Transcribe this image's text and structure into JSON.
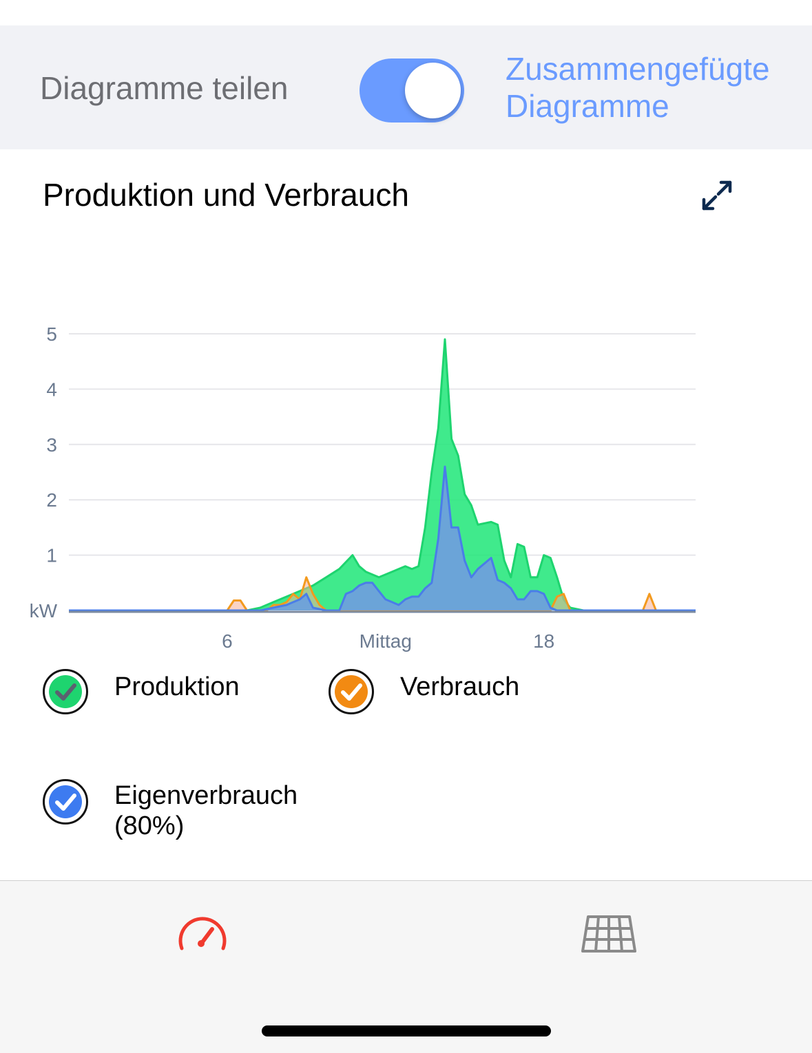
{
  "toggle": {
    "left_label": "Diagramme teilen",
    "right_label": "Zusammengefügte Diagramme",
    "on": true,
    "accent_color": "#6a9bff"
  },
  "card": {
    "title": "Produktion und Verbrauch",
    "expand_icon": "expand-arrows-icon"
  },
  "chart_data": {
    "type": "area",
    "unit_label": "kW",
    "x_tick_labels": [
      "6",
      "Mittag",
      "18"
    ],
    "x_ticks": [
      6,
      12,
      18
    ],
    "xlim": [
      0,
      23.75
    ],
    "ylim": [
      0,
      5
    ],
    "y_ticks": [
      1,
      2,
      3,
      4,
      5
    ],
    "grid": true,
    "series": [
      {
        "name": "Produktion",
        "color": "#1ed46f",
        "points": [
          [
            0,
            0
          ],
          [
            6.75,
            0
          ],
          [
            7.25,
            0.05
          ],
          [
            7.75,
            0.15
          ],
          [
            8.5,
            0.3
          ],
          [
            9.25,
            0.45
          ],
          [
            9.75,
            0.6
          ],
          [
            10.25,
            0.75
          ],
          [
            10.75,
            1.0
          ],
          [
            11,
            0.8
          ],
          [
            11.25,
            0.7
          ],
          [
            11.5,
            0.65
          ],
          [
            11.75,
            0.6
          ],
          [
            12,
            0.65
          ],
          [
            12.25,
            0.7
          ],
          [
            12.5,
            0.75
          ],
          [
            12.75,
            0.8
          ],
          [
            13,
            0.75
          ],
          [
            13.25,
            0.8
          ],
          [
            13.5,
            1.5
          ],
          [
            13.75,
            2.5
          ],
          [
            14,
            3.3
          ],
          [
            14.25,
            4.9
          ],
          [
            14.5,
            3.1
          ],
          [
            14.75,
            2.8
          ],
          [
            15,
            2.1
          ],
          [
            15.25,
            1.9
          ],
          [
            15.5,
            1.55
          ],
          [
            16,
            1.6
          ],
          [
            16.25,
            1.55
          ],
          [
            16.5,
            0.9
          ],
          [
            16.75,
            0.6
          ],
          [
            17,
            1.2
          ],
          [
            17.25,
            1.15
          ],
          [
            17.5,
            0.6
          ],
          [
            17.75,
            0.6
          ],
          [
            18,
            1.0
          ],
          [
            18.25,
            0.95
          ],
          [
            18.5,
            0.6
          ],
          [
            18.75,
            0.2
          ],
          [
            19,
            0.05
          ],
          [
            19.5,
            0
          ],
          [
            23.75,
            0
          ]
        ]
      },
      {
        "name": "Verbrauch",
        "color": "#f39a1e",
        "points": [
          [
            0,
            0
          ],
          [
            6,
            0
          ],
          [
            6.25,
            0.18
          ],
          [
            6.5,
            0.18
          ],
          [
            6.75,
            0
          ],
          [
            7.5,
            0
          ],
          [
            7.75,
            0.1
          ],
          [
            8,
            0.1
          ],
          [
            8.25,
            0.15
          ],
          [
            8.5,
            0.3
          ],
          [
            8.75,
            0.2
          ],
          [
            9,
            0.6
          ],
          [
            9.25,
            0.3
          ],
          [
            9.5,
            0.1
          ],
          [
            9.75,
            0
          ],
          [
            18.25,
            0
          ],
          [
            18.5,
            0.25
          ],
          [
            18.75,
            0.3
          ],
          [
            19,
            0
          ],
          [
            21.75,
            0
          ],
          [
            22,
            0.3
          ],
          [
            22.25,
            0
          ],
          [
            23.75,
            0
          ]
        ]
      },
      {
        "name": "Eigenverbrauch",
        "label_suffix": "(80%)",
        "color": "#4a7de8",
        "points": [
          [
            0,
            0
          ],
          [
            7.25,
            0
          ],
          [
            7.75,
            0.05
          ],
          [
            8.25,
            0.1
          ],
          [
            8.5,
            0.15
          ],
          [
            8.75,
            0.2
          ],
          [
            9,
            0.3
          ],
          [
            9.25,
            0.05
          ],
          [
            9.75,
            0
          ],
          [
            10.25,
            0
          ],
          [
            10.5,
            0.3
          ],
          [
            10.75,
            0.35
          ],
          [
            11,
            0.45
          ],
          [
            11.25,
            0.5
          ],
          [
            11.5,
            0.5
          ],
          [
            11.75,
            0.35
          ],
          [
            12,
            0.2
          ],
          [
            12.25,
            0.15
          ],
          [
            12.5,
            0.1
          ],
          [
            12.75,
            0.2
          ],
          [
            13,
            0.25
          ],
          [
            13.25,
            0.25
          ],
          [
            13.5,
            0.4
          ],
          [
            13.75,
            0.5
          ],
          [
            14,
            1.3
          ],
          [
            14.25,
            2.6
          ],
          [
            14.5,
            1.5
          ],
          [
            14.75,
            1.5
          ],
          [
            15,
            0.9
          ],
          [
            15.25,
            0.6
          ],
          [
            15.5,
            0.75
          ],
          [
            16,
            0.95
          ],
          [
            16.25,
            0.55
          ],
          [
            16.5,
            0.5
          ],
          [
            16.75,
            0.4
          ],
          [
            17,
            0.2
          ],
          [
            17.25,
            0.2
          ],
          [
            17.5,
            0.35
          ],
          [
            17.75,
            0.35
          ],
          [
            18,
            0.3
          ],
          [
            18.25,
            0.05
          ],
          [
            18.5,
            0
          ],
          [
            23.75,
            0
          ]
        ]
      }
    ]
  },
  "legend": [
    {
      "name": "Produktion",
      "fill": "#1ed46f",
      "check_color": "#5b6170",
      "checked": true
    },
    {
      "name": "Verbrauch",
      "fill": "#f28a12",
      "check_color": "#ffffff",
      "checked": true
    },
    {
      "name": "Eigenverbrauch",
      "suffix": "(80%)",
      "fill": "#3d7bf0",
      "check_color": "#ffffff",
      "checked": true
    }
  ],
  "tabs": [
    {
      "icon": "speedometer-icon",
      "active": true,
      "color": "#f03a2e"
    },
    {
      "icon": "solar-panel-icon",
      "active": false,
      "color": "#8a8a8a"
    }
  ]
}
